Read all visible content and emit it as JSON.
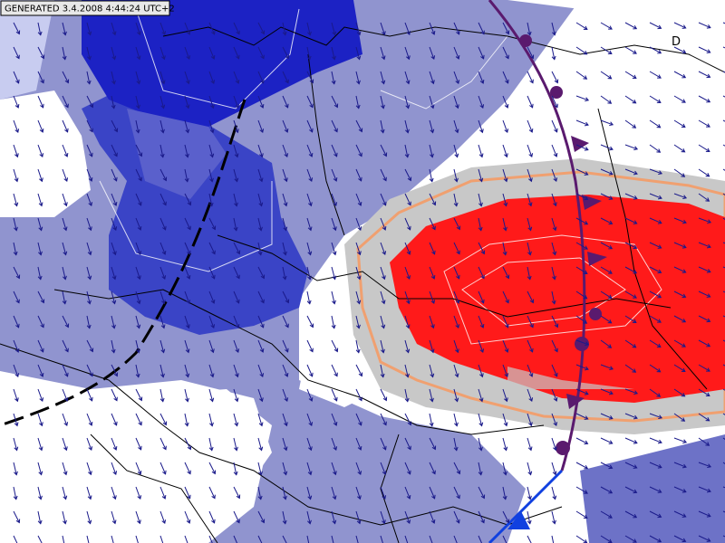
{
  "header": {
    "generated": "GENERATED 3.4.2008 4:44:24 UTC+2"
  },
  "labels": {
    "country": "D"
  }
}
